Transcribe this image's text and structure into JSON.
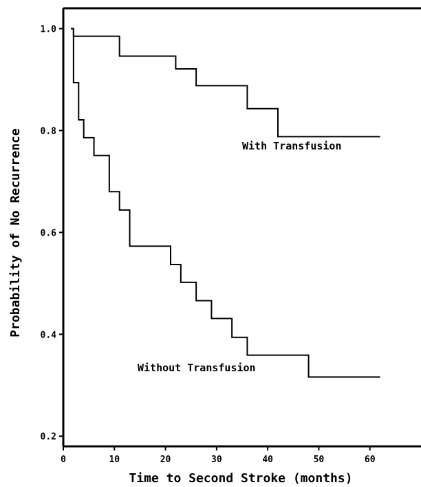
{
  "chart_data": {
    "type": "line",
    "step": true,
    "xlabel": "Time to Second Stroke (months)",
    "ylabel": "Probability of No Recurrence",
    "xlim": [
      0,
      70
    ],
    "ylim": [
      0.18,
      1.04
    ],
    "xticks": [
      0,
      10,
      20,
      30,
      40,
      50,
      60
    ],
    "yticks": [
      0.2,
      0.4,
      0.6,
      0.8,
      1.0
    ],
    "ytick_labels": [
      "0.2",
      "0.4",
      "0.6",
      "0.8",
      "1.0"
    ],
    "grid": false,
    "legend": "none",
    "series": [
      {
        "name": "With Transfusion",
        "x": [
          1.5,
          2,
          11,
          22,
          26,
          36,
          42,
          62
        ],
        "y": [
          1.0,
          0.985,
          0.946,
          0.921,
          0.888,
          0.843,
          0.788,
          0.788
        ]
      },
      {
        "name": "Without Transfusion",
        "x": [
          1.5,
          2,
          3,
          4,
          6,
          9,
          11,
          13,
          21,
          23,
          26,
          29,
          33,
          36,
          48,
          62
        ],
        "y": [
          1.0,
          0.894,
          0.821,
          0.786,
          0.751,
          0.68,
          0.644,
          0.573,
          0.537,
          0.502,
          0.466,
          0.431,
          0.394,
          0.359,
          0.316,
          0.316
        ]
      }
    ]
  }
}
